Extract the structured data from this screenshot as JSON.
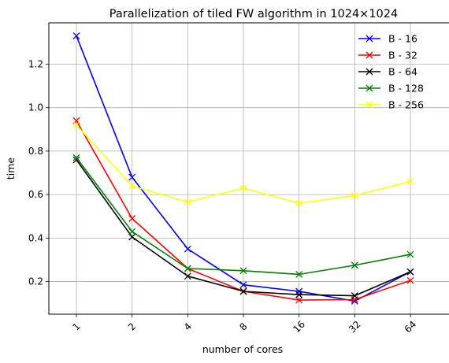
{
  "chart_data": {
    "type": "line",
    "title": "Parallelization of tiled FW algorithm in 1024×1024",
    "xlabel": "number of cores",
    "ylabel": "time",
    "categories": [
      "1",
      "2",
      "4",
      "8",
      "16",
      "32",
      "64"
    ],
    "ylim": [
      0.05,
      1.39
    ],
    "yticks": [
      "0.2",
      "0.4",
      "0.6",
      "0.8",
      "1.0",
      "1.2"
    ],
    "grid": true,
    "legend_position": "top-right",
    "marker": "x",
    "series": [
      {
        "name": "B - 16",
        "color": "#0000ff",
        "values": [
          1.33,
          0.68,
          0.35,
          0.185,
          0.155,
          0.11,
          0.245
        ]
      },
      {
        "name": "B - 32",
        "color": "#ff0000",
        "values": [
          0.94,
          0.49,
          0.26,
          0.155,
          0.115,
          0.117,
          0.205
        ]
      },
      {
        "name": "B - 64",
        "color": "#000000",
        "values": [
          0.76,
          0.405,
          0.225,
          0.155,
          0.14,
          0.135,
          0.245
        ]
      },
      {
        "name": "B - 128",
        "color": "#008000",
        "values": [
          0.77,
          0.43,
          0.26,
          0.25,
          0.233,
          0.275,
          0.325
        ]
      },
      {
        "name": "B - 256",
        "color": "#ffff00",
        "values": [
          0.92,
          0.64,
          0.565,
          0.63,
          0.56,
          0.595,
          0.66
        ]
      }
    ]
  }
}
